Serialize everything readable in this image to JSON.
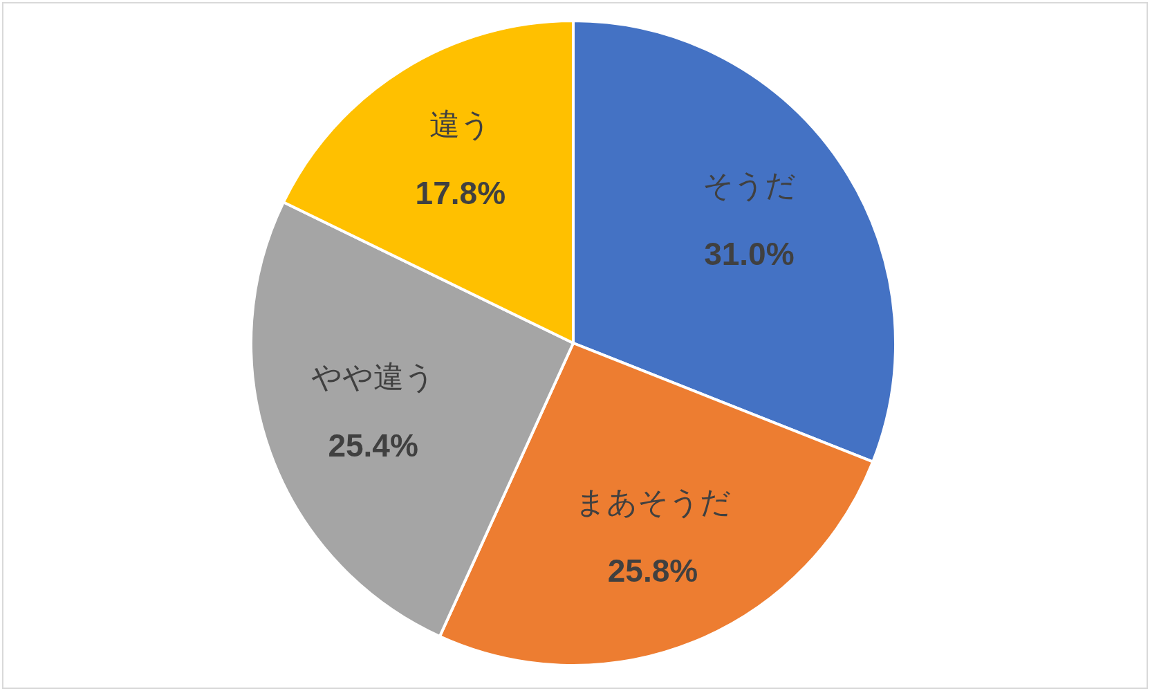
{
  "chart_data": {
    "type": "pie",
    "categories": [
      "そうだ",
      "まあそうだ",
      "やや違う",
      "違う"
    ],
    "values": [
      31.0,
      25.8,
      25.4,
      17.8
    ],
    "colors": [
      "#4472c4",
      "#ed7d31",
      "#a5a5a5",
      "#ffc000"
    ],
    "value_labels": [
      "31.0%",
      "25.8%",
      "25.4%",
      "17.8%"
    ]
  }
}
